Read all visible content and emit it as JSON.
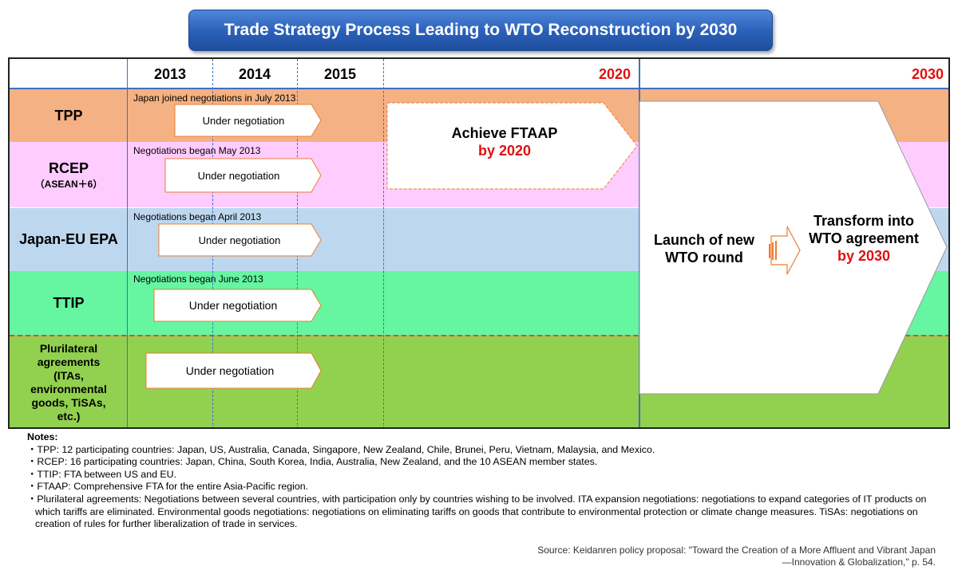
{
  "title": "Trade Strategy Process Leading to WTO Reconstruction by 2030",
  "years": [
    "2013",
    "2014",
    "2015",
    "2020",
    "2030"
  ],
  "rows": [
    {
      "label": "TPP",
      "sublabel": "",
      "note": "Japan joined negotiations in July 2013",
      "arrow": "Under negotiation",
      "color": "#f4b183"
    },
    {
      "label": "RCEP",
      "sublabel": "（ASEAN＋6）",
      "note": "Negotiations began May 2013",
      "arrow": "Under negotiation",
      "color": "#ffccff"
    },
    {
      "label": "Japan-EU EPA",
      "sublabel": "",
      "note": "Negotiations began April 2013",
      "arrow": "Under negotiation",
      "color": "#bdd7ee"
    },
    {
      "label": "TTIP",
      "sublabel": "",
      "note": "Negotiations began June 2013",
      "arrow": "Under negotiation",
      "color": "#66f5a0"
    },
    {
      "label": "Plurilateral agreements (ITAs, environmental goods, TiSAs, etc.)",
      "sublabel": "",
      "note": "",
      "arrow": "Under negotiation",
      "color": "#92d050"
    }
  ],
  "ftaap": {
    "line1": "Achieve FTAAP",
    "line2": "by 2020"
  },
  "wto_round": "Launch of new WTO round",
  "transform": {
    "line1": "Transform into WTO agreement",
    "line2": "by 2030"
  },
  "notes": {
    "heading": "Notes:",
    "items": [
      "・TPP: 12 participating countries: Japan, US, Australia, Canada, Singapore, New Zealand, Chile, Brunei, Peru, Vietnam, Malaysia, and Mexico.",
      "・RCEP: 16 participating countries: Japan, China, South Korea, India, Australia, New Zealand, and the 10 ASEAN member states.",
      "・TTIP: FTA between US and EU.",
      "・FTAAP: Comprehensive FTA for the entire Asia-Pacific region.",
      "・Plurilateral agreements: Negotiations between several countries, with participation only by countries wishing to be involved. ITA expansion negotiations: negotiations to expand categories of IT products on which tariffs are eliminated. Environmental goods negotiations: negotiations on eliminating tariffs on goods that contribute to environmental protection or climate change measures. TiSAs: negotiations on creation of rules for further liberalization of trade in services."
    ]
  },
  "source": {
    "line1": "Source: Keidanren policy proposal: \"Toward the Creation of a More Affluent and Vibrant Japan",
    "line2": "—Innovation & Globalization,\" p. 54."
  },
  "colors": {
    "title_blue": "#2a5fb8",
    "accent_red": "#e01010",
    "arrow_border": "#ed7d31",
    "grid_blue": "#3a72c6"
  }
}
